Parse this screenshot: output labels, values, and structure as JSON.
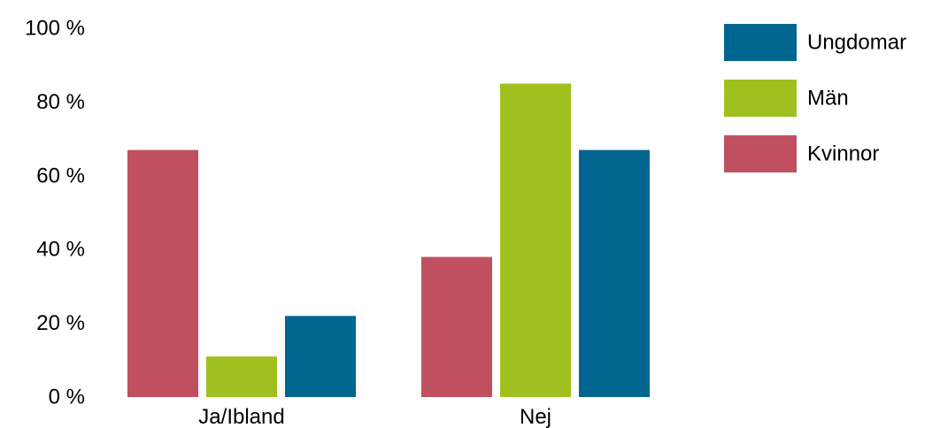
{
  "chart_data": {
    "type": "bar",
    "title": "",
    "xlabel": "",
    "ylabel": "",
    "categories": [
      "Ja/Ibland",
      "Nej"
    ],
    "series": [
      {
        "name": "Kvinnor",
        "color": "#c05060",
        "values": [
          67,
          38
        ]
      },
      {
        "name": "Män",
        "color": "#a0c020",
        "values": [
          11,
          85
        ]
      },
      {
        "name": "Ungdomar",
        "color": "#00668f",
        "values": [
          22,
          67
        ]
      }
    ],
    "ylim": [
      0,
      100
    ],
    "yticks": [
      0,
      20,
      40,
      60,
      80,
      100
    ],
    "ytick_labels": [
      "0 %",
      "20 %",
      "40 %",
      "60 %",
      "80 %",
      "100 %"
    ],
    "grid": false,
    "legend": {
      "position": "top-right",
      "order": [
        "Ungdomar",
        "Män",
        "Kvinnor"
      ]
    }
  }
}
